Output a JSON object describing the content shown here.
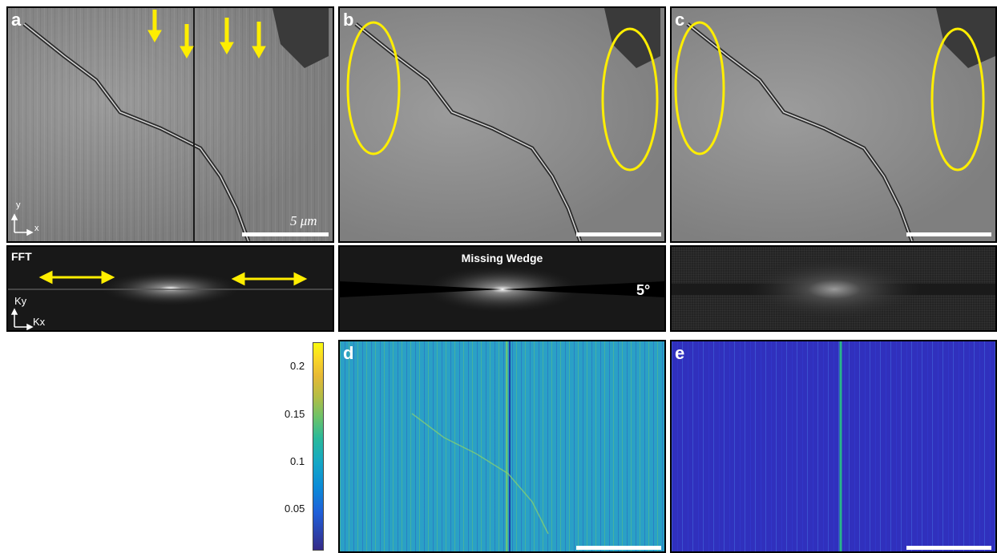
{
  "panels": {
    "a": {
      "letter": "a",
      "scale_label": "5 μm",
      "axis_y": "y",
      "axis_x": "x"
    },
    "b": {
      "letter": "b"
    },
    "c": {
      "letter": "c"
    },
    "d": {
      "letter": "d"
    },
    "e": {
      "letter": "e"
    }
  },
  "fft": {
    "a_label": "FFT",
    "axis_ky": "Ky",
    "axis_kx": "Kx",
    "b_title": "Missing Wedge",
    "b_angle": "5°"
  },
  "colorbar": {
    "ticks": [
      "0.2",
      "0.15",
      "0.1",
      "0.05"
    ],
    "range": [
      0,
      0.22
    ],
    "colormap": "parula"
  },
  "colors": {
    "annotation": "#ffee00",
    "border": "#000000"
  }
}
